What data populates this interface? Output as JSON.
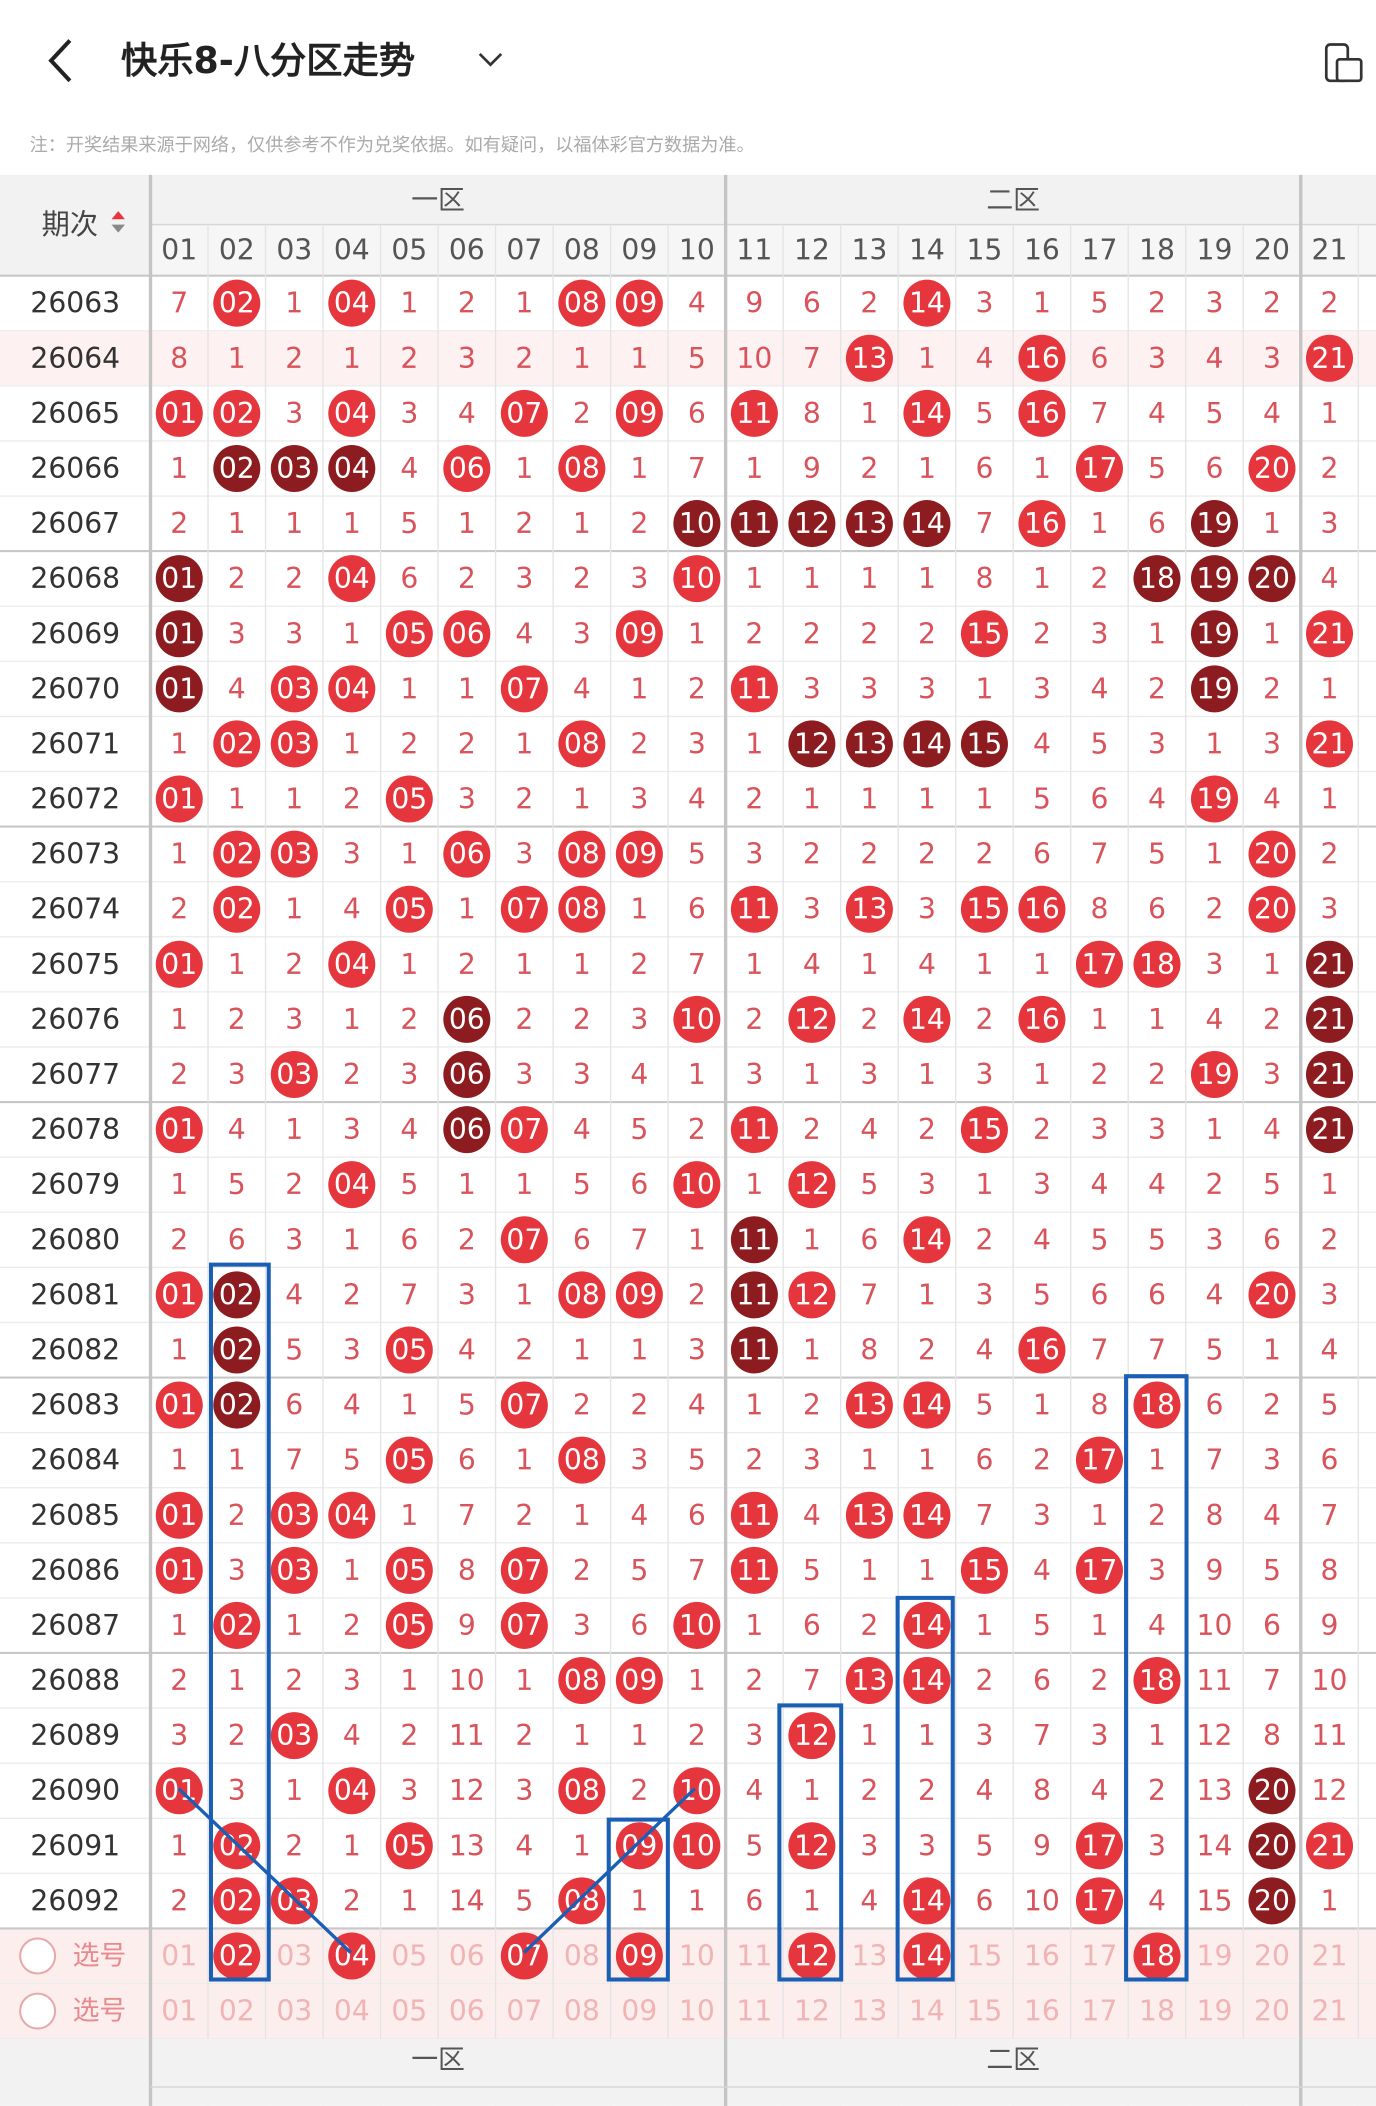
{
  "header": {
    "title": "快乐8-八分区走势",
    "note": "注：开奖结果来源于网络，仅供参考不作为兑奖依据。如有疑问，以福体彩官方数据为准。"
  },
  "table": {
    "issue_header": "期次",
    "zones": [
      "一区",
      "二区"
    ],
    "columns": [
      "01",
      "02",
      "03",
      "04",
      "05",
      "06",
      "07",
      "08",
      "09",
      "10",
      "11",
      "12",
      "13",
      "14",
      "15",
      "16",
      "17",
      "18",
      "19",
      "20",
      "21"
    ],
    "colors": {
      "r": "#e4363c",
      "d": "#8c1c1f",
      "miss": "#d9535b",
      "pale": "#f0b4b4"
    },
    "rows": [
      {
        "issue": "26063",
        "cells": [
          "7",
          "02",
          "1",
          "04",
          "1",
          "2",
          "1",
          "08",
          "09",
          "4",
          "9",
          "6",
          "2",
          "14",
          "3",
          "1",
          "5",
          "2",
          "3",
          "2",
          "2"
        ],
        "style": "nrnrnnnrrnnnnrnnnnnnn"
      },
      {
        "issue": "26064",
        "cells": [
          "8",
          "1",
          "2",
          "1",
          "2",
          "3",
          "2",
          "1",
          "1",
          "5",
          "10",
          "7",
          "13",
          "1",
          "4",
          "16",
          "6",
          "3",
          "4",
          "3",
          "21"
        ],
        "style": "nnnnnnnnnnnnrnnrnnnnr"
      },
      {
        "issue": "26065",
        "cells": [
          "01",
          "02",
          "3",
          "04",
          "3",
          "4",
          "07",
          "2",
          "09",
          "6",
          "11",
          "8",
          "1",
          "14",
          "5",
          "16",
          "7",
          "4",
          "5",
          "4",
          "1"
        ],
        "style": "rrnrnnrnrnrnnrnrnnnnn"
      },
      {
        "issue": "26066",
        "cells": [
          "1",
          "02",
          "03",
          "04",
          "4",
          "06",
          "1",
          "08",
          "1",
          "7",
          "1",
          "9",
          "2",
          "1",
          "6",
          "1",
          "17",
          "5",
          "6",
          "20",
          "2"
        ],
        "style": "ndddnrnrnnnnnnnnrnnrn"
      },
      {
        "issue": "26067",
        "cells": [
          "2",
          "1",
          "1",
          "1",
          "5",
          "1",
          "2",
          "1",
          "2",
          "10",
          "11",
          "12",
          "13",
          "14",
          "7",
          "16",
          "1",
          "6",
          "19",
          "1",
          "3"
        ],
        "style": "nnnnnnnnndddddnrnndnn"
      },
      {
        "issue": "26068",
        "cells": [
          "01",
          "2",
          "2",
          "04",
          "6",
          "2",
          "3",
          "2",
          "3",
          "10",
          "1",
          "1",
          "1",
          "1",
          "8",
          "1",
          "2",
          "18",
          "19",
          "20",
          "4"
        ],
        "style": "dnnrnnnnnrnnnnnnndddn"
      },
      {
        "issue": "26069",
        "cells": [
          "01",
          "3",
          "3",
          "1",
          "05",
          "06",
          "4",
          "3",
          "09",
          "1",
          "2",
          "2",
          "2",
          "2",
          "15",
          "2",
          "3",
          "1",
          "19",
          "1",
          "21"
        ],
        "style": "dnnnrrnnrnnnnnrnnndnr"
      },
      {
        "issue": "26070",
        "cells": [
          "01",
          "4",
          "03",
          "04",
          "1",
          "1",
          "07",
          "4",
          "1",
          "2",
          "11",
          "3",
          "3",
          "3",
          "1",
          "3",
          "4",
          "2",
          "19",
          "2",
          "1"
        ],
        "style": "dnrrnnrnnnrnnnnnnndnn"
      },
      {
        "issue": "26071",
        "cells": [
          "1",
          "02",
          "03",
          "1",
          "2",
          "2",
          "1",
          "08",
          "2",
          "3",
          "1",
          "12",
          "13",
          "14",
          "15",
          "4",
          "5",
          "3",
          "1",
          "3",
          "21"
        ],
        "style": "nrrnnnnrnnnddddnnnnnr"
      },
      {
        "issue": "26072",
        "cells": [
          "01",
          "1",
          "1",
          "2",
          "05",
          "3",
          "2",
          "1",
          "3",
          "4",
          "2",
          "1",
          "1",
          "1",
          "1",
          "5",
          "6",
          "4",
          "19",
          "4",
          "1"
        ],
        "style": "rnnnrnnnnnnnnnnnnnrnn"
      },
      {
        "issue": "26073",
        "cells": [
          "1",
          "02",
          "03",
          "3",
          "1",
          "06",
          "3",
          "08",
          "09",
          "5",
          "3",
          "2",
          "2",
          "2",
          "2",
          "6",
          "7",
          "5",
          "1",
          "20",
          "2"
        ],
        "style": "nrrnnrnrrnnnnnnnnnnrn"
      },
      {
        "issue": "26074",
        "cells": [
          "2",
          "02",
          "1",
          "4",
          "05",
          "1",
          "07",
          "08",
          "1",
          "6",
          "11",
          "3",
          "13",
          "3",
          "15",
          "16",
          "8",
          "6",
          "2",
          "20",
          "3"
        ],
        "style": "nrnnrnrrnnrnrnrrnnnrn"
      },
      {
        "issue": "26075",
        "cells": [
          "01",
          "1",
          "2",
          "04",
          "1",
          "2",
          "1",
          "1",
          "2",
          "7",
          "1",
          "4",
          "1",
          "4",
          "1",
          "1",
          "17",
          "18",
          "3",
          "1",
          "21"
        ],
        "style": "rnnrnnnnnnnnnnnnrrnnd"
      },
      {
        "issue": "26076",
        "cells": [
          "1",
          "2",
          "3",
          "1",
          "2",
          "06",
          "2",
          "2",
          "3",
          "10",
          "2",
          "12",
          "2",
          "14",
          "2",
          "16",
          "1",
          "1",
          "4",
          "2",
          "21"
        ],
        "style": "nnnnndnnnrnrnrnrnnnnd"
      },
      {
        "issue": "26077",
        "cells": [
          "2",
          "3",
          "03",
          "2",
          "3",
          "06",
          "3",
          "3",
          "4",
          "1",
          "3",
          "1",
          "3",
          "1",
          "3",
          "1",
          "2",
          "2",
          "19",
          "3",
          "21"
        ],
        "style": "nnrnndnnnnnnnnnnnnrnd"
      },
      {
        "issue": "26078",
        "cells": [
          "01",
          "4",
          "1",
          "3",
          "4",
          "06",
          "07",
          "4",
          "5",
          "2",
          "11",
          "2",
          "4",
          "2",
          "15",
          "2",
          "3",
          "3",
          "1",
          "4",
          "21"
        ],
        "style": "rnnnndrnnnrnnnrnnnnnd"
      },
      {
        "issue": "26079",
        "cells": [
          "1",
          "5",
          "2",
          "04",
          "5",
          "1",
          "1",
          "5",
          "6",
          "10",
          "1",
          "12",
          "5",
          "3",
          "1",
          "3",
          "4",
          "4",
          "2",
          "5",
          "1"
        ],
        "style": "nnnrnnnnnrnrnnnnnnnnn"
      },
      {
        "issue": "26080",
        "cells": [
          "2",
          "6",
          "3",
          "1",
          "6",
          "2",
          "07",
          "6",
          "7",
          "1",
          "11",
          "1",
          "6",
          "14",
          "2",
          "4",
          "5",
          "5",
          "3",
          "6",
          "2"
        ],
        "style": "nnnnnnrnnndnnrnnnnnnn"
      },
      {
        "issue": "26081",
        "cells": [
          "01",
          "02",
          "4",
          "2",
          "7",
          "3",
          "1",
          "08",
          "09",
          "2",
          "11",
          "12",
          "7",
          "1",
          "3",
          "5",
          "6",
          "6",
          "4",
          "20",
          "3"
        ],
        "style": "rdnnnnnrrndrnnnnnnnrn"
      },
      {
        "issue": "26082",
        "cells": [
          "1",
          "02",
          "5",
          "3",
          "05",
          "4",
          "2",
          "1",
          "1",
          "3",
          "11",
          "1",
          "8",
          "2",
          "4",
          "16",
          "7",
          "7",
          "5",
          "1",
          "4"
        ],
        "style": "ndnnrnnnnndnnnnrnnnnn"
      },
      {
        "issue": "26083",
        "cells": [
          "01",
          "02",
          "6",
          "4",
          "1",
          "5",
          "07",
          "2",
          "2",
          "4",
          "1",
          "2",
          "13",
          "14",
          "5",
          "1",
          "8",
          "18",
          "6",
          "2",
          "5"
        ],
        "style": "rdnnnnrnnnnnrrnnnrnnn"
      },
      {
        "issue": "26084",
        "cells": [
          "1",
          "1",
          "7",
          "5",
          "05",
          "6",
          "1",
          "08",
          "3",
          "5",
          "2",
          "3",
          "1",
          "1",
          "6",
          "2",
          "17",
          "1",
          "7",
          "3",
          "6"
        ],
        "style": "nnnnrnnrnnnnnnnnrnnnn"
      },
      {
        "issue": "26085",
        "cells": [
          "01",
          "2",
          "03",
          "04",
          "1",
          "7",
          "2",
          "1",
          "4",
          "6",
          "11",
          "4",
          "13",
          "14",
          "7",
          "3",
          "1",
          "2",
          "8",
          "4",
          "7"
        ],
        "style": "rnrrnnnnnnrnrrnnnnnnn"
      },
      {
        "issue": "26086",
        "cells": [
          "01",
          "3",
          "03",
          "1",
          "05",
          "8",
          "07",
          "2",
          "5",
          "7",
          "11",
          "5",
          "1",
          "1",
          "15",
          "4",
          "17",
          "3",
          "9",
          "5",
          "8"
        ],
        "style": "rnrnrnrnnnrnnnrnrnnnn"
      },
      {
        "issue": "26087",
        "cells": [
          "1",
          "02",
          "1",
          "2",
          "05",
          "9",
          "07",
          "3",
          "6",
          "10",
          "1",
          "6",
          "2",
          "14",
          "1",
          "5",
          "1",
          "4",
          "10",
          "6",
          "9"
        ],
        "style": "nrnnrnrnnrnnnrnnnnnnn"
      },
      {
        "issue": "26088",
        "cells": [
          "2",
          "1",
          "2",
          "3",
          "1",
          "10",
          "1",
          "08",
          "09",
          "1",
          "2",
          "7",
          "13",
          "14",
          "2",
          "6",
          "2",
          "18",
          "11",
          "7",
          "10"
        ],
        "style": "nnnnnnnrrnnnrrnnnrnnn"
      },
      {
        "issue": "26089",
        "cells": [
          "3",
          "2",
          "03",
          "4",
          "2",
          "11",
          "2",
          "1",
          "1",
          "2",
          "3",
          "12",
          "1",
          "1",
          "3",
          "7",
          "3",
          "1",
          "12",
          "8",
          "11"
        ],
        "style": "nnrnnnnnnnnrnnnnnnnnn"
      },
      {
        "issue": "26090",
        "cells": [
          "01",
          "3",
          "1",
          "04",
          "3",
          "12",
          "3",
          "08",
          "2",
          "10",
          "4",
          "1",
          "2",
          "2",
          "4",
          "8",
          "4",
          "2",
          "13",
          "20",
          "12"
        ],
        "style": "rnnrnnnrnrnnnnnnnnndn"
      },
      {
        "issue": "26091",
        "cells": [
          "1",
          "02",
          "2",
          "1",
          "05",
          "13",
          "4",
          "1",
          "09",
          "10",
          "5",
          "12",
          "3",
          "3",
          "5",
          "9",
          "17",
          "3",
          "14",
          "20",
          "21"
        ],
        "style": "nrnnrnnnrrnrnnnnrnndr"
      },
      {
        "issue": "26092",
        "cells": [
          "2",
          "02",
          "03",
          "2",
          "1",
          "14",
          "5",
          "08",
          "1",
          "1",
          "6",
          "1",
          "4",
          "14",
          "6",
          "10",
          "17",
          "4",
          "15",
          "20",
          "1"
        ],
        "style": "nrrnnnnrnnnnnrnnrnndn"
      }
    ],
    "select_rows": [
      {
        "label": "选号",
        "style": "pspsppspsppspspppsppp"
      },
      {
        "label": "选号",
        "style": "ppppppppppppppppppppp"
      }
    ],
    "footer": "-"
  }
}
